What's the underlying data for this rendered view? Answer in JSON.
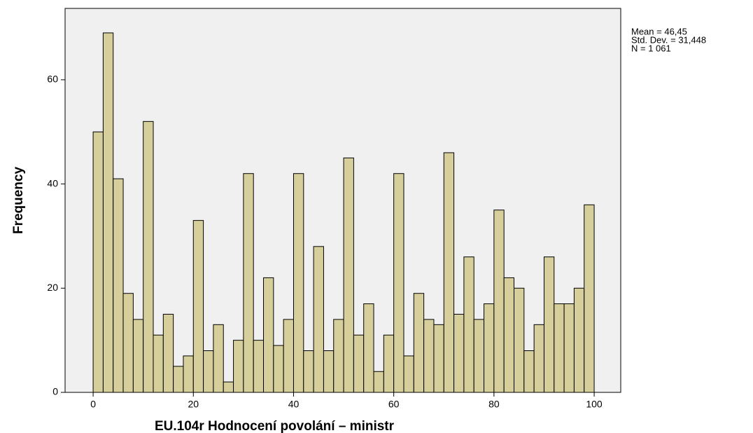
{
  "chart_data": {
    "type": "histogram",
    "x_label": "EU.104r Hodnocení povolání – ministr",
    "y_label": "Frequency",
    "annotations": [
      "Mean = 46,45",
      "Std. Dev. = 31,448",
      "N = 1 061"
    ],
    "bins": [
      0,
      2,
      4,
      6,
      8,
      10,
      12,
      14,
      16,
      18,
      20,
      22,
      24,
      26,
      28,
      30,
      32,
      34,
      36,
      38,
      40,
      42,
      44,
      46,
      48,
      50,
      52,
      54,
      56,
      58,
      60,
      62,
      64,
      66,
      68,
      70,
      72,
      74,
      76,
      78,
      80,
      82,
      84,
      86,
      88,
      90,
      92,
      94,
      96,
      98,
      100
    ],
    "values": [
      50,
      69,
      41,
      19,
      14,
      52,
      11,
      15,
      5,
      7,
      33,
      8,
      13,
      2,
      10,
      42,
      10,
      22,
      9,
      14,
      42,
      8,
      28,
      8,
      14,
      45,
      11,
      17,
      4,
      11,
      42,
      7,
      19,
      14,
      13,
      46,
      15,
      26,
      14,
      17,
      35,
      22,
      20,
      8,
      13,
      26,
      17,
      17,
      20,
      36
    ],
    "color": "#d6cf9c",
    "background": "#f0f0f0",
    "xlim": [
      -5.6,
      105.3
    ],
    "xticks": [
      0,
      20,
      40,
      60,
      80,
      100
    ],
    "ylim": [
      0,
      73.7
    ],
    "yticks": [
      0,
      20,
      40,
      60
    ]
  }
}
